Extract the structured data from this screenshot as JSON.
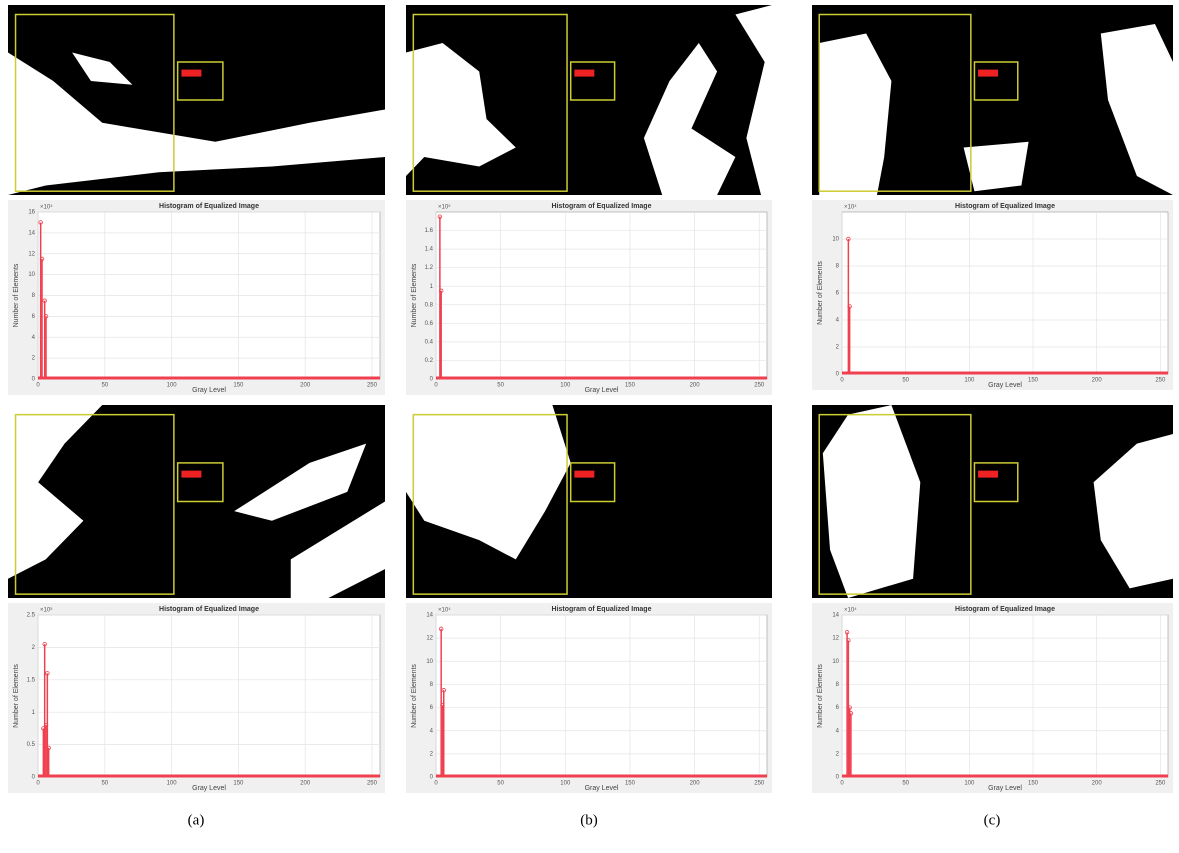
{
  "chart_data": [
    {
      "type": "bar",
      "title": "Histogram of Equalized Image",
      "x_label": "Gray Level",
      "y_label": "Number of Elements",
      "y_multiplier": "×10⁴",
      "x": [
        2,
        3,
        5,
        6
      ],
      "values": [
        15,
        11.5,
        7.5,
        6
      ],
      "color": "#f04050",
      "xlim": [
        0,
        256
      ],
      "xticks": [
        0,
        50,
        100,
        150,
        200,
        250
      ],
      "ylim": [
        0,
        16
      ],
      "yticks": [
        0,
        2,
        4,
        6,
        8,
        10,
        12,
        14,
        16
      ],
      "grid": true
    },
    {
      "type": "bar",
      "title": "Histogram of Equalized Image",
      "x_label": "Gray Level",
      "y_label": "Number of Elements",
      "y_multiplier": "×10⁵",
      "x": [
        3,
        4
      ],
      "values": [
        1.75,
        0.95
      ],
      "color": "#f04050",
      "xlim": [
        0,
        256
      ],
      "xticks": [
        0,
        50,
        100,
        150,
        200,
        250
      ],
      "ylim": [
        0,
        1.8
      ],
      "yticks": [
        0,
        0.2,
        0.4,
        0.6,
        0.8,
        1,
        1.2,
        1.4,
        1.6
      ],
      "grid": true
    },
    {
      "type": "bar",
      "title": "Histogram of Equalized Image",
      "x_label": "Gray Level",
      "y_label": "Number of Elements",
      "y_multiplier": "×10⁴",
      "x": [
        5,
        6
      ],
      "values": [
        10,
        5
      ],
      "color": "#f04050",
      "xlim": [
        0,
        256
      ],
      "xticks": [
        0,
        50,
        100,
        150,
        200,
        250
      ],
      "ylim": [
        0,
        12
      ],
      "yticks": [
        0,
        2,
        4,
        6,
        8,
        10
      ],
      "grid": true
    },
    {
      "type": "bar",
      "title": "Histogram of Equalized Image",
      "x_label": "Gray Level",
      "y_label": "Number of Elements",
      "y_multiplier": "×10⁵",
      "x": [
        4,
        5,
        6,
        7,
        8
      ],
      "values": [
        0.75,
        2.05,
        0.8,
        1.6,
        0.45
      ],
      "color": "#f04050",
      "xlim": [
        0,
        256
      ],
      "xticks": [
        0,
        50,
        100,
        150,
        200,
        250
      ],
      "ylim": [
        0,
        2.5
      ],
      "yticks": [
        0,
        0.5,
        1,
        1.5,
        2,
        2.5
      ],
      "grid": true
    },
    {
      "type": "bar",
      "title": "Histogram of Equalized Image",
      "x_label": "Gray Level",
      "y_label": "Number of Elements",
      "y_multiplier": "×10⁴",
      "x": [
        4,
        5,
        6
      ],
      "values": [
        12.8,
        6.2,
        7.5
      ],
      "color": "#f04050",
      "xlim": [
        0,
        256
      ],
      "xticks": [
        0,
        50,
        100,
        150,
        200,
        250
      ],
      "ylim": [
        0,
        14
      ],
      "yticks": [
        0,
        2,
        4,
        6,
        8,
        10,
        12,
        14
      ],
      "grid": true
    },
    {
      "type": "bar",
      "title": "Histogram of Equalized Image",
      "x_label": "Gray Level",
      "y_label": "Number of Elements",
      "y_multiplier": "×10⁴",
      "x": [
        4,
        5,
        6,
        7
      ],
      "values": [
        12.5,
        11.8,
        6,
        5.5
      ],
      "color": "#f04050",
      "xlim": [
        0,
        256
      ],
      "xticks": [
        0,
        50,
        100,
        150,
        200,
        250
      ],
      "ylim": [
        0,
        14
      ],
      "yticks": [
        0,
        2,
        4,
        6,
        8,
        10,
        12,
        14
      ],
      "grid": true
    }
  ],
  "captions": [
    "(a)",
    "(b)",
    "(c)"
  ]
}
